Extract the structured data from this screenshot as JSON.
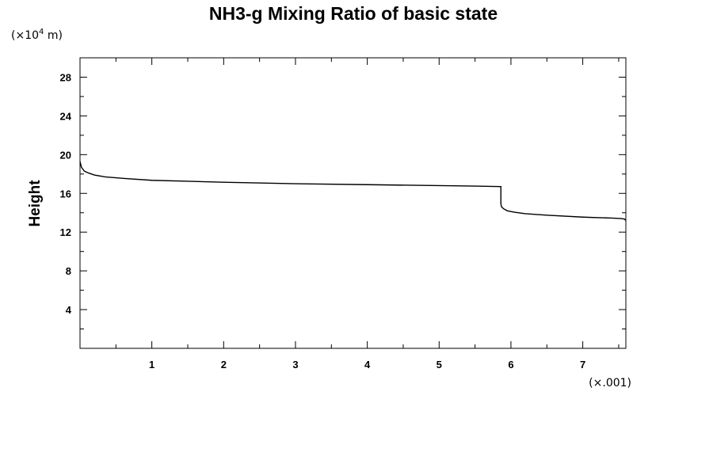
{
  "chart_data": {
    "type": "line",
    "title": "NH3-g Mixing Ratio of basic state",
    "xlabel": "",
    "ylabel": "Height",
    "y_unit_prefix": "(×10",
    "y_unit_exponent": "4",
    "y_unit_suffix": " m)",
    "x_unit": "(×.001)",
    "xlim": [
      0,
      7.6
    ],
    "ylim": [
      0,
      30
    ],
    "x_ticks_major": [
      1,
      2,
      3,
      4,
      5,
      6,
      7
    ],
    "x_tick_labels": [
      "1",
      "2",
      "3",
      "4",
      "5",
      "6",
      "7"
    ],
    "y_ticks_major": [
      4,
      8,
      12,
      16,
      20,
      24,
      28
    ],
    "y_tick_labels": [
      "4",
      "8",
      "12",
      "16",
      "20",
      "24",
      "28"
    ],
    "grid": false,
    "legend": "none",
    "line_color": "#000000",
    "series": [
      {
        "x": [
          0.0,
          0.02,
          0.06,
          0.12,
          0.2,
          0.35,
          0.6,
          1.0,
          1.5,
          2.0,
          3.0,
          4.0,
          5.0,
          5.5,
          5.86,
          5.86,
          5.87,
          5.9,
          5.95,
          6.05,
          6.2,
          6.5,
          7.0,
          7.4,
          7.53,
          7.58,
          7.6
        ],
        "y": [
          19.3,
          18.7,
          18.3,
          18.1,
          17.9,
          17.7,
          17.55,
          17.35,
          17.25,
          17.15,
          17.0,
          16.9,
          16.8,
          16.75,
          16.7,
          14.9,
          14.6,
          14.4,
          14.2,
          14.05,
          13.9,
          13.75,
          13.55,
          13.45,
          13.4,
          13.35,
          13.2
        ]
      }
    ]
  }
}
